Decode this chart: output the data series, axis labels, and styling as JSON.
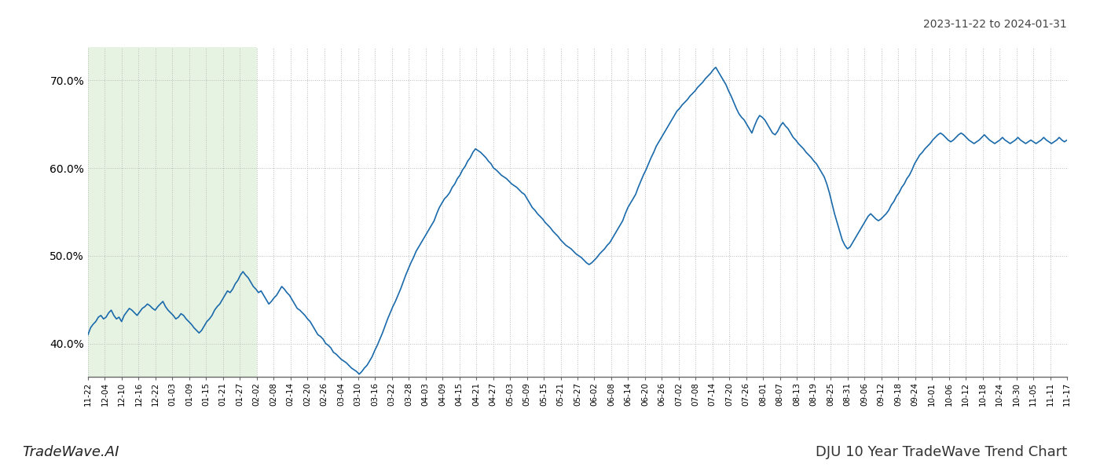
{
  "title_top_right": "2023-11-22 to 2024-01-31",
  "title_bottom_right": "DJU 10 Year TradeWave Trend Chart",
  "title_bottom_left": "TradeWave.AI",
  "line_color": "#1a6aab",
  "line_width": 1.2,
  "shade_color": "#c8e6c0",
  "shade_alpha": 0.45,
  "background_color": "#ffffff",
  "grid_color": "#bbbbbb",
  "grid_style": ":",
  "ylim": [
    0.362,
    0.738
  ],
  "yticks": [
    0.4,
    0.5,
    0.6,
    0.7
  ],
  "ytick_labels": [
    "40.0%",
    "50.0%",
    "60.0%",
    "70.0%"
  ],
  "x_labels": [
    "11-22",
    "12-04",
    "12-10",
    "12-16",
    "12-22",
    "01-03",
    "01-09",
    "01-15",
    "01-21",
    "01-27",
    "02-02",
    "02-08",
    "02-14",
    "02-20",
    "02-26",
    "03-04",
    "03-10",
    "03-16",
    "03-22",
    "03-28",
    "04-03",
    "04-09",
    "04-15",
    "04-21",
    "04-27",
    "05-03",
    "05-09",
    "05-15",
    "05-21",
    "05-27",
    "06-02",
    "06-08",
    "06-14",
    "06-20",
    "06-26",
    "07-02",
    "07-08",
    "07-14",
    "07-20",
    "07-26",
    "08-01",
    "08-07",
    "08-13",
    "08-19",
    "08-25",
    "08-31",
    "09-06",
    "09-12",
    "09-18",
    "09-24",
    "10-01",
    "10-06",
    "10-12",
    "10-18",
    "10-24",
    "10-30",
    "11-05",
    "11-11",
    "11-17"
  ],
  "shade_label_start": "11-22",
  "shade_label_end": "02-02",
  "values": [
    0.41,
    0.418,
    0.422,
    0.425,
    0.43,
    0.432,
    0.428,
    0.43,
    0.435,
    0.438,
    0.432,
    0.428,
    0.43,
    0.425,
    0.432,
    0.436,
    0.44,
    0.438,
    0.435,
    0.432,
    0.436,
    0.44,
    0.442,
    0.445,
    0.443,
    0.44,
    0.438,
    0.442,
    0.445,
    0.448,
    0.442,
    0.438,
    0.435,
    0.432,
    0.428,
    0.43,
    0.434,
    0.432,
    0.428,
    0.425,
    0.422,
    0.418,
    0.415,
    0.412,
    0.415,
    0.42,
    0.425,
    0.428,
    0.432,
    0.438,
    0.442,
    0.445,
    0.45,
    0.455,
    0.46,
    0.458,
    0.462,
    0.468,
    0.472,
    0.478,
    0.482,
    0.478,
    0.475,
    0.47,
    0.465,
    0.462,
    0.458,
    0.46,
    0.455,
    0.45,
    0.445,
    0.448,
    0.452,
    0.455,
    0.46,
    0.465,
    0.462,
    0.458,
    0.455,
    0.45,
    0.445,
    0.44,
    0.438,
    0.435,
    0.432,
    0.428,
    0.425,
    0.42,
    0.415,
    0.41,
    0.408,
    0.405,
    0.4,
    0.398,
    0.395,
    0.39,
    0.388,
    0.385,
    0.382,
    0.38,
    0.378,
    0.375,
    0.372,
    0.37,
    0.368,
    0.365,
    0.368,
    0.372,
    0.375,
    0.38,
    0.385,
    0.392,
    0.398,
    0.405,
    0.412,
    0.42,
    0.428,
    0.435,
    0.442,
    0.448,
    0.455,
    0.462,
    0.47,
    0.478,
    0.485,
    0.492,
    0.498,
    0.505,
    0.51,
    0.515,
    0.52,
    0.525,
    0.53,
    0.535,
    0.54,
    0.548,
    0.555,
    0.56,
    0.565,
    0.568,
    0.572,
    0.578,
    0.582,
    0.588,
    0.592,
    0.598,
    0.602,
    0.608,
    0.612,
    0.618,
    0.622,
    0.62,
    0.618,
    0.615,
    0.612,
    0.608,
    0.605,
    0.6,
    0.598,
    0.595,
    0.592,
    0.59,
    0.588,
    0.585,
    0.582,
    0.58,
    0.578,
    0.575,
    0.572,
    0.57,
    0.565,
    0.56,
    0.555,
    0.552,
    0.548,
    0.545,
    0.542,
    0.538,
    0.535,
    0.532,
    0.528,
    0.525,
    0.522,
    0.518,
    0.515,
    0.512,
    0.51,
    0.508,
    0.505,
    0.502,
    0.5,
    0.498,
    0.495,
    0.492,
    0.49,
    0.492,
    0.495,
    0.498,
    0.502,
    0.505,
    0.508,
    0.512,
    0.515,
    0.52,
    0.525,
    0.53,
    0.535,
    0.54,
    0.548,
    0.555,
    0.56,
    0.565,
    0.57,
    0.578,
    0.585,
    0.592,
    0.598,
    0.605,
    0.612,
    0.618,
    0.625,
    0.63,
    0.635,
    0.64,
    0.645,
    0.65,
    0.655,
    0.66,
    0.665,
    0.668,
    0.672,
    0.675,
    0.678,
    0.682,
    0.685,
    0.688,
    0.692,
    0.695,
    0.698,
    0.702,
    0.705,
    0.708,
    0.712,
    0.715,
    0.71,
    0.705,
    0.7,
    0.695,
    0.688,
    0.682,
    0.675,
    0.668,
    0.662,
    0.658,
    0.655,
    0.65,
    0.645,
    0.64,
    0.648,
    0.655,
    0.66,
    0.658,
    0.655,
    0.65,
    0.645,
    0.64,
    0.638,
    0.642,
    0.648,
    0.652,
    0.648,
    0.645,
    0.64,
    0.635,
    0.632,
    0.628,
    0.625,
    0.622,
    0.618,
    0.615,
    0.612,
    0.608,
    0.605,
    0.6,
    0.595,
    0.59,
    0.582,
    0.572,
    0.56,
    0.548,
    0.538,
    0.528,
    0.518,
    0.512,
    0.508,
    0.51,
    0.515,
    0.52,
    0.525,
    0.53,
    0.535,
    0.54,
    0.545,
    0.548,
    0.545,
    0.542,
    0.54,
    0.542,
    0.545,
    0.548,
    0.552,
    0.558,
    0.562,
    0.568,
    0.572,
    0.578,
    0.582,
    0.588,
    0.592,
    0.598,
    0.605,
    0.61,
    0.615,
    0.618,
    0.622,
    0.625,
    0.628,
    0.632,
    0.635,
    0.638,
    0.64,
    0.638,
    0.635,
    0.632,
    0.63,
    0.632,
    0.635,
    0.638,
    0.64,
    0.638,
    0.635,
    0.632,
    0.63,
    0.628,
    0.63,
    0.632,
    0.635,
    0.638,
    0.635,
    0.632,
    0.63,
    0.628,
    0.63,
    0.632,
    0.635,
    0.632,
    0.63,
    0.628,
    0.63,
    0.632,
    0.635,
    0.632,
    0.63,
    0.628,
    0.63,
    0.632,
    0.63,
    0.628,
    0.63,
    0.632,
    0.635,
    0.632,
    0.63,
    0.628,
    0.63,
    0.632,
    0.635,
    0.632,
    0.63,
    0.632
  ]
}
